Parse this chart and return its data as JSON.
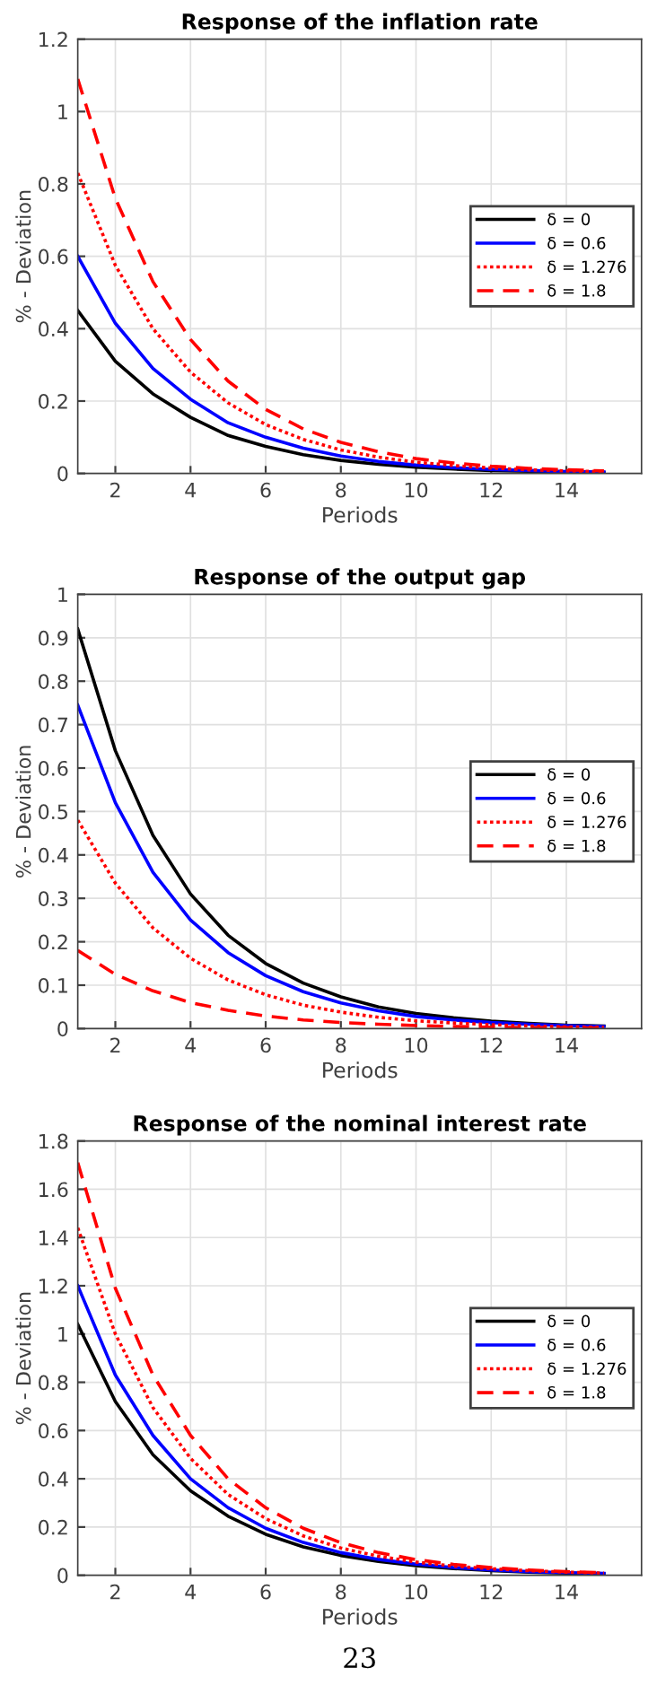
{
  "chart_data": [
    {
      "type": "line",
      "title": "Response of the inflation rate",
      "xlabel": "Periods",
      "ylabel": "% - Deviation",
      "x": [
        1,
        2,
        3,
        4,
        5,
        6,
        7,
        8,
        9,
        10,
        11,
        12,
        13,
        14,
        15
      ],
      "xlim": [
        1,
        16
      ],
      "xticks": [
        2,
        4,
        6,
        8,
        10,
        12,
        14
      ],
      "ylim": [
        0,
        1.2
      ],
      "yticks": [
        0,
        0.2,
        0.4,
        0.6,
        0.8,
        1,
        1.2
      ],
      "grid": true,
      "legend": "right",
      "series": [
        {
          "name": "δ = 0",
          "color": "#000000",
          "line_style": "solid",
          "values": [
            0.45,
            0.31,
            0.22,
            0.155,
            0.105,
            0.075,
            0.052,
            0.036,
            0.025,
            0.017,
            0.012,
            0.008,
            0.006,
            0.004,
            0.003
          ]
        },
        {
          "name": "δ = 0.6",
          "color": "#0000ff",
          "line_style": "solid",
          "values": [
            0.6,
            0.415,
            0.29,
            0.205,
            0.14,
            0.1,
            0.07,
            0.048,
            0.033,
            0.023,
            0.016,
            0.011,
            0.008,
            0.005,
            0.004
          ]
        },
        {
          "name": "δ = 1.276",
          "color": "#ff0000",
          "line_style": "dotted",
          "values": [
            0.83,
            0.575,
            0.4,
            0.28,
            0.195,
            0.135,
            0.094,
            0.065,
            0.045,
            0.031,
            0.022,
            0.015,
            0.01,
            0.007,
            0.005
          ]
        },
        {
          "name": "δ = 1.8",
          "color": "#ff0000",
          "line_style": "dashed",
          "values": [
            1.09,
            0.76,
            0.53,
            0.37,
            0.255,
            0.177,
            0.123,
            0.086,
            0.06,
            0.041,
            0.029,
            0.02,
            0.014,
            0.01,
            0.007
          ]
        }
      ]
    },
    {
      "type": "line",
      "title": "Response of the output gap",
      "xlabel": "Periods",
      "ylabel": "% - Deviation",
      "x": [
        1,
        2,
        3,
        4,
        5,
        6,
        7,
        8,
        9,
        10,
        11,
        12,
        13,
        14,
        15
      ],
      "xlim": [
        1,
        16
      ],
      "xticks": [
        2,
        4,
        6,
        8,
        10,
        12,
        14
      ],
      "ylim": [
        0,
        1
      ],
      "yticks": [
        0,
        0.1,
        0.2,
        0.3,
        0.4,
        0.5,
        0.6,
        0.7,
        0.8,
        0.9,
        1
      ],
      "grid": true,
      "legend": "right",
      "series": [
        {
          "name": "δ = 0",
          "color": "#000000",
          "line_style": "solid",
          "values": [
            0.92,
            0.64,
            0.445,
            0.31,
            0.215,
            0.15,
            0.105,
            0.073,
            0.05,
            0.035,
            0.025,
            0.017,
            0.012,
            0.008,
            0.006
          ]
        },
        {
          "name": "δ = 0.6",
          "color": "#0000ff",
          "line_style": "solid",
          "values": [
            0.745,
            0.52,
            0.36,
            0.25,
            0.175,
            0.122,
            0.085,
            0.059,
            0.041,
            0.028,
            0.02,
            0.014,
            0.01,
            0.007,
            0.005
          ]
        },
        {
          "name": "δ = 1.276",
          "color": "#ff0000",
          "line_style": "dotted",
          "values": [
            0.48,
            0.335,
            0.232,
            0.162,
            0.112,
            0.078,
            0.054,
            0.038,
            0.026,
            0.018,
            0.013,
            0.009,
            0.006,
            0.004,
            0.003
          ]
        },
        {
          "name": "δ = 1.8",
          "color": "#ff0000",
          "line_style": "dashed",
          "values": [
            0.18,
            0.125,
            0.087,
            0.06,
            0.042,
            0.029,
            0.02,
            0.014,
            0.01,
            0.007,
            0.005,
            0.003,
            0.002,
            0.002,
            0.001
          ]
        }
      ]
    },
    {
      "type": "line",
      "title": "Response of the nominal interest rate",
      "xlabel": "Periods",
      "ylabel": "% - Deviation",
      "x": [
        1,
        2,
        3,
        4,
        5,
        6,
        7,
        8,
        9,
        10,
        11,
        12,
        13,
        14,
        15
      ],
      "xlim": [
        1,
        16
      ],
      "xticks": [
        2,
        4,
        6,
        8,
        10,
        12,
        14
      ],
      "ylim": [
        0,
        1.8
      ],
      "yticks": [
        0,
        0.2,
        0.4,
        0.6,
        0.8,
        1,
        1.2,
        1.4,
        1.6,
        1.8
      ],
      "grid": true,
      "legend": "right",
      "annotations": [
        "23"
      ],
      "series": [
        {
          "name": "δ = 0",
          "color": "#000000",
          "line_style": "solid",
          "values": [
            1.04,
            0.72,
            0.5,
            0.35,
            0.245,
            0.17,
            0.118,
            0.082,
            0.057,
            0.04,
            0.028,
            0.019,
            0.013,
            0.009,
            0.006
          ]
        },
        {
          "name": "δ = 0.6",
          "color": "#0000ff",
          "line_style": "solid",
          "values": [
            1.2,
            0.83,
            0.58,
            0.4,
            0.28,
            0.195,
            0.136,
            0.094,
            0.066,
            0.046,
            0.032,
            0.022,
            0.015,
            0.011,
            0.008
          ]
        },
        {
          "name": "δ = 1.276",
          "color": "#ff0000",
          "line_style": "dotted",
          "values": [
            1.44,
            1.0,
            0.695,
            0.485,
            0.335,
            0.235,
            0.163,
            0.113,
            0.079,
            0.055,
            0.038,
            0.027,
            0.019,
            0.013,
            0.009
          ]
        },
        {
          "name": "δ = 1.8",
          "color": "#ff0000",
          "line_style": "dashed",
          "values": [
            1.71,
            1.19,
            0.83,
            0.58,
            0.4,
            0.28,
            0.195,
            0.135,
            0.094,
            0.065,
            0.045,
            0.032,
            0.022,
            0.015,
            0.011
          ]
        }
      ]
    }
  ]
}
